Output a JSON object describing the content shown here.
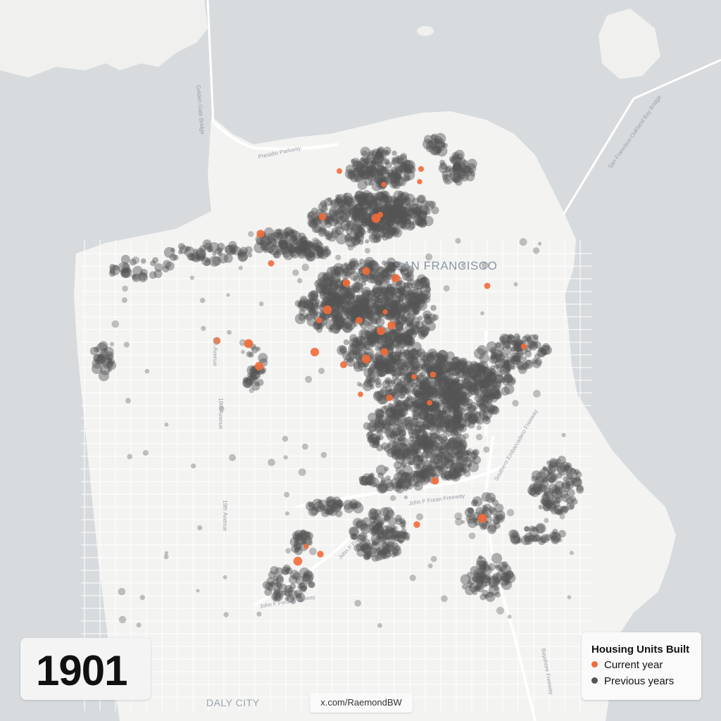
{
  "year": "1901",
  "legend": {
    "title": "Housing Units Built",
    "current_label": "Current year",
    "previous_label": "Previous years",
    "current_color": "#f26b3a",
    "previous_color": "#555555"
  },
  "credit": "x.com/RaemondBW",
  "places": {
    "city": "SAN FRANCISCO",
    "south": "DALY CITY"
  },
  "roads": {
    "golden_gate": "Golden Gate Bridge",
    "presidio": "Presidio Parkway",
    "bay_bridge": "San Francisco-Oakland Bay Bridge",
    "ave9": "9th Avenue",
    "ave19a": "19th Avenue",
    "ave19b": "19th Avenue",
    "foran1": "John F Foran Freeway",
    "foran2": "John F Foran Freeway",
    "foran3": "John F Foran Freeway",
    "embarcadero": "Southern Embarcadero Freeway",
    "bayshore": "Bayshore Freeway"
  },
  "colors": {
    "water": "#d7dbde",
    "land": "#f3f3f2",
    "street": "#ffffff"
  }
}
